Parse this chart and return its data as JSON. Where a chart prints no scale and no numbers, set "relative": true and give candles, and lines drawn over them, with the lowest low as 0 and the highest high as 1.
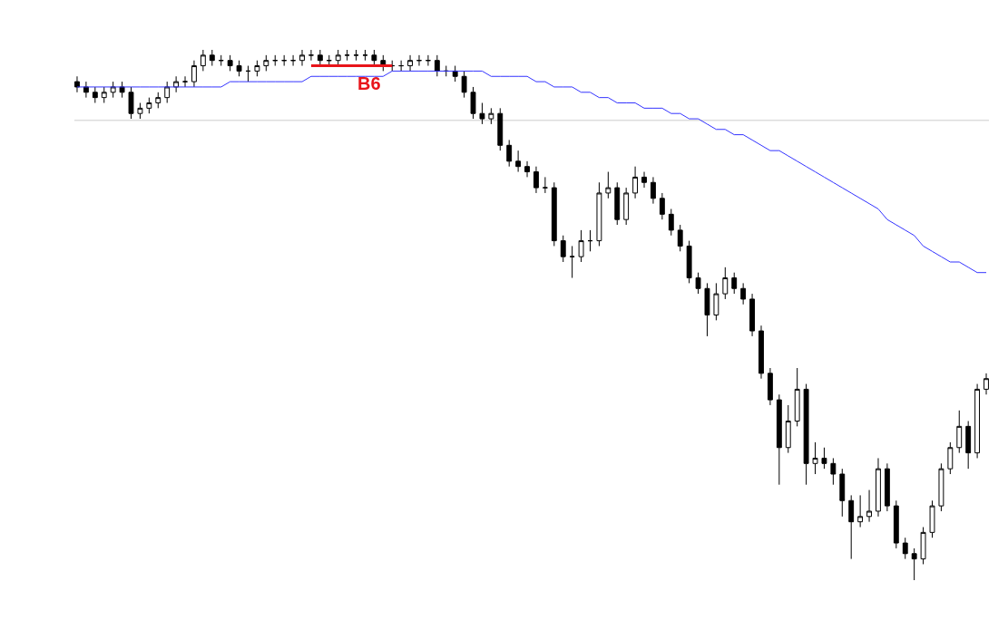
{
  "chart_data": {
    "type": "candlestick",
    "relative": true,
    "tick_labels": false,
    "grid": false,
    "categories": [
      null,
      null,
      null,
      null,
      null,
      null,
      null,
      null,
      null,
      null,
      null,
      null,
      null,
      null,
      null,
      null,
      null,
      null,
      null,
      null,
      null,
      null,
      null,
      null,
      null,
      null,
      null,
      null,
      null,
      null,
      null,
      null,
      null,
      null,
      null,
      null,
      null,
      null,
      null,
      null,
      null,
      null,
      null,
      null,
      null,
      null,
      null,
      null,
      null,
      null,
      null,
      null,
      null,
      null,
      null,
      null,
      null,
      null,
      null,
      null,
      null,
      null,
      null,
      null,
      null,
      null,
      null,
      null,
      null,
      null,
      null,
      null,
      null,
      null,
      null,
      null,
      null,
      null,
      null,
      null,
      null,
      null,
      null,
      null,
      null,
      null,
      null,
      null,
      null,
      null,
      null,
      null,
      null,
      null,
      null,
      null,
      null,
      null,
      null,
      null,
      null,
      null
    ],
    "ohlc": [
      [
        0.94,
        0.95,
        0.92,
        0.93
      ],
      [
        0.93,
        0.94,
        0.91,
        0.92
      ],
      [
        0.92,
        0.93,
        0.9,
        0.91
      ],
      [
        0.91,
        0.93,
        0.9,
        0.92
      ],
      [
        0.92,
        0.94,
        0.91,
        0.93
      ],
      [
        0.93,
        0.94,
        0.91,
        0.92
      ],
      [
        0.92,
        0.93,
        0.87,
        0.88
      ],
      [
        0.88,
        0.9,
        0.87,
        0.89
      ],
      [
        0.89,
        0.91,
        0.88,
        0.9
      ],
      [
        0.9,
        0.92,
        0.89,
        0.91
      ],
      [
        0.91,
        0.94,
        0.9,
        0.93
      ],
      [
        0.93,
        0.95,
        0.92,
        0.94
      ],
      [
        0.94,
        0.95,
        0.93,
        0.94
      ],
      [
        0.94,
        0.98,
        0.93,
        0.97
      ],
      [
        0.97,
        1.0,
        0.96,
        0.99
      ],
      [
        0.99,
        1.0,
        0.97,
        0.98
      ],
      [
        0.98,
        0.99,
        0.97,
        0.98
      ],
      [
        0.98,
        0.99,
        0.96,
        0.97
      ],
      [
        0.97,
        0.98,
        0.95,
        0.96
      ],
      [
        0.96,
        0.97,
        0.94,
        0.96
      ],
      [
        0.96,
        0.98,
        0.95,
        0.97
      ],
      [
        0.97,
        0.99,
        0.96,
        0.98
      ],
      [
        0.98,
        0.99,
        0.97,
        0.98
      ],
      [
        0.98,
        0.99,
        0.97,
        0.98
      ],
      [
        0.98,
        0.99,
        0.97,
        0.98
      ],
      [
        0.98,
        1.0,
        0.97,
        0.99
      ],
      [
        0.99,
        1.0,
        0.98,
        0.99
      ],
      [
        0.99,
        1.0,
        0.97,
        0.98
      ],
      [
        0.98,
        0.99,
        0.97,
        0.98
      ],
      [
        0.98,
        1.0,
        0.97,
        0.99
      ],
      [
        0.99,
        1.0,
        0.98,
        0.99
      ],
      [
        0.99,
        1.0,
        0.98,
        0.99
      ],
      [
        0.99,
        1.0,
        0.98,
        0.99
      ],
      [
        0.99,
        1.0,
        0.97,
        0.98
      ],
      [
        0.98,
        0.99,
        0.96,
        0.97
      ],
      [
        0.97,
        0.98,
        0.96,
        0.97
      ],
      [
        0.97,
        0.98,
        0.96,
        0.97
      ],
      [
        0.97,
        0.99,
        0.96,
        0.98
      ],
      [
        0.98,
        0.99,
        0.97,
        0.98
      ],
      [
        0.98,
        0.99,
        0.97,
        0.98
      ],
      [
        0.98,
        0.99,
        0.95,
        0.96
      ],
      [
        0.96,
        0.97,
        0.95,
        0.96
      ],
      [
        0.96,
        0.97,
        0.94,
        0.95
      ],
      [
        0.95,
        0.96,
        0.91,
        0.92
      ],
      [
        0.92,
        0.93,
        0.87,
        0.88
      ],
      [
        0.88,
        0.9,
        0.86,
        0.87
      ],
      [
        0.87,
        0.89,
        0.86,
        0.88
      ],
      [
        0.88,
        0.89,
        0.81,
        0.82
      ],
      [
        0.82,
        0.83,
        0.78,
        0.79
      ],
      [
        0.79,
        0.81,
        0.77,
        0.78
      ],
      [
        0.78,
        0.79,
        0.76,
        0.77
      ],
      [
        0.77,
        0.78,
        0.73,
        0.74
      ],
      [
        0.74,
        0.76,
        0.73,
        0.74
      ],
      [
        0.74,
        0.75,
        0.63,
        0.64
      ],
      [
        0.64,
        0.65,
        0.6,
        0.61
      ],
      [
        0.61,
        0.63,
        0.57,
        0.61
      ],
      [
        0.61,
        0.66,
        0.6,
        0.64
      ],
      [
        0.64,
        0.66,
        0.62,
        0.64
      ],
      [
        0.64,
        0.75,
        0.63,
        0.73
      ],
      [
        0.73,
        0.77,
        0.72,
        0.74
      ],
      [
        0.74,
        0.75,
        0.67,
        0.68
      ],
      [
        0.68,
        0.74,
        0.67,
        0.73
      ],
      [
        0.73,
        0.78,
        0.72,
        0.76
      ],
      [
        0.76,
        0.77,
        0.74,
        0.75
      ],
      [
        0.75,
        0.76,
        0.71,
        0.72
      ],
      [
        0.72,
        0.73,
        0.68,
        0.69
      ],
      [
        0.69,
        0.7,
        0.65,
        0.66
      ],
      [
        0.66,
        0.67,
        0.62,
        0.63
      ],
      [
        0.63,
        0.64,
        0.56,
        0.57
      ],
      [
        0.57,
        0.58,
        0.54,
        0.55
      ],
      [
        0.55,
        0.56,
        0.46,
        0.5
      ],
      [
        0.5,
        0.56,
        0.49,
        0.54
      ],
      [
        0.54,
        0.59,
        0.53,
        0.57
      ],
      [
        0.57,
        0.58,
        0.54,
        0.55
      ],
      [
        0.55,
        0.56,
        0.52,
        0.53
      ],
      [
        0.53,
        0.54,
        0.46,
        0.47
      ],
      [
        0.47,
        0.48,
        0.38,
        0.39
      ],
      [
        0.39,
        0.4,
        0.33,
        0.34
      ],
      [
        0.34,
        0.35,
        0.18,
        0.25
      ],
      [
        0.25,
        0.33,
        0.24,
        0.3
      ],
      [
        0.3,
        0.4,
        0.29,
        0.36
      ],
      [
        0.36,
        0.37,
        0.18,
        0.22
      ],
      [
        0.22,
        0.26,
        0.2,
        0.23
      ],
      [
        0.23,
        0.25,
        0.21,
        0.22
      ],
      [
        0.22,
        0.23,
        0.18,
        0.2
      ],
      [
        0.2,
        0.21,
        0.12,
        0.15
      ],
      [
        0.15,
        0.16,
        0.04,
        0.11
      ],
      [
        0.11,
        0.16,
        0.1,
        0.12
      ],
      [
        0.12,
        0.17,
        0.11,
        0.13
      ],
      [
        0.13,
        0.23,
        0.12,
        0.21
      ],
      [
        0.21,
        0.22,
        0.13,
        0.14
      ],
      [
        0.14,
        0.15,
        0.06,
        0.07
      ],
      [
        0.07,
        0.08,
        0.04,
        0.05
      ],
      [
        0.05,
        0.06,
        0.0,
        0.04
      ],
      [
        0.04,
        0.1,
        0.03,
        0.09
      ],
      [
        0.09,
        0.15,
        0.08,
        0.14
      ],
      [
        0.14,
        0.22,
        0.13,
        0.21
      ],
      [
        0.21,
        0.26,
        0.2,
        0.25
      ],
      [
        0.25,
        0.32,
        0.24,
        0.29
      ],
      [
        0.29,
        0.3,
        0.21,
        0.24
      ],
      [
        0.24,
        0.37,
        0.23,
        0.36
      ],
      [
        0.36,
        0.39,
        0.35,
        0.38
      ]
    ],
    "series": [
      {
        "type": "line",
        "color": "#3333ff",
        "values": [
          0.93,
          0.93,
          0.93,
          0.93,
          0.93,
          0.93,
          0.93,
          0.93,
          0.93,
          0.93,
          0.93,
          0.93,
          0.93,
          0.93,
          0.93,
          0.93,
          0.93,
          0.94,
          0.94,
          0.94,
          0.94,
          0.94,
          0.94,
          0.94,
          0.94,
          0.94,
          0.95,
          0.95,
          0.95,
          0.95,
          0.95,
          0.95,
          0.95,
          0.95,
          0.95,
          0.96,
          0.96,
          0.96,
          0.96,
          0.96,
          0.96,
          0.96,
          0.96,
          0.96,
          0.96,
          0.96,
          0.95,
          0.95,
          0.95,
          0.95,
          0.95,
          0.94,
          0.94,
          0.93,
          0.93,
          0.93,
          0.92,
          0.92,
          0.91,
          0.91,
          0.9,
          0.9,
          0.9,
          0.89,
          0.89,
          0.89,
          0.88,
          0.88,
          0.87,
          0.87,
          0.86,
          0.85,
          0.85,
          0.84,
          0.84,
          0.83,
          0.82,
          0.81,
          0.81,
          0.8,
          0.79,
          0.78,
          0.77,
          0.76,
          0.75,
          0.74,
          0.73,
          0.72,
          0.71,
          0.7,
          0.68,
          0.67,
          0.66,
          0.65,
          0.63,
          0.62,
          0.61,
          0.6,
          0.6,
          0.59,
          0.58,
          0.58
        ]
      },
      {
        "type": "line",
        "name": "B6",
        "color": "#e8141a",
        "values": [
          null,
          null,
          null,
          null,
          null,
          null,
          null,
          null,
          null,
          null,
          null,
          null,
          null,
          null,
          null,
          null,
          null,
          null,
          null,
          null,
          null,
          null,
          null,
          null,
          null,
          null,
          0.97,
          0.97,
          0.97,
          0.97,
          0.97,
          0.97,
          0.97,
          0.97,
          0.97,
          0.97,
          null,
          null,
          null,
          null,
          null,
          null,
          null,
          null,
          null,
          null,
          null,
          null,
          null,
          null,
          null,
          null,
          null,
          null,
          null,
          null,
          null,
          null,
          null,
          null,
          null,
          null,
          null,
          null,
          null,
          null,
          null,
          null,
          null,
          null,
          null,
          null,
          null,
          null,
          null,
          null,
          null,
          null,
          null,
          null,
          null,
          null,
          null,
          null,
          null,
          null,
          null,
          null,
          null,
          null,
          null,
          null,
          null,
          null,
          null,
          null,
          null,
          null,
          null,
          null,
          null,
          null
        ]
      }
    ],
    "ref_lines": [
      {
        "axis": "y",
        "value": 0.867,
        "color": "#cccccc"
      }
    ]
  }
}
